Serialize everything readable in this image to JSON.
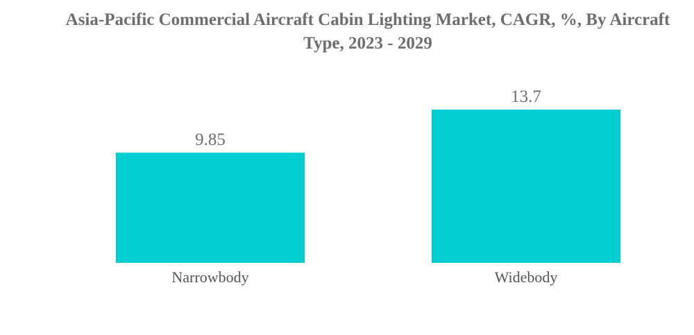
{
  "chart_data": {
    "type": "bar",
    "title": "Asia-Pacific Commercial Aircraft Cabin Lighting Market, CAGR, %, By Aircraft Type, 2023 - 2029",
    "categories": [
      "Narrowbody",
      "Widebody"
    ],
    "values": [
      9.85,
      13.7
    ],
    "value_labels": [
      "9.85",
      "13.7"
    ],
    "xlabel": "",
    "ylabel": "",
    "ylim": [
      0,
      14.2
    ],
    "grid": false,
    "legend": "none",
    "bar_color": "#00CED1"
  }
}
